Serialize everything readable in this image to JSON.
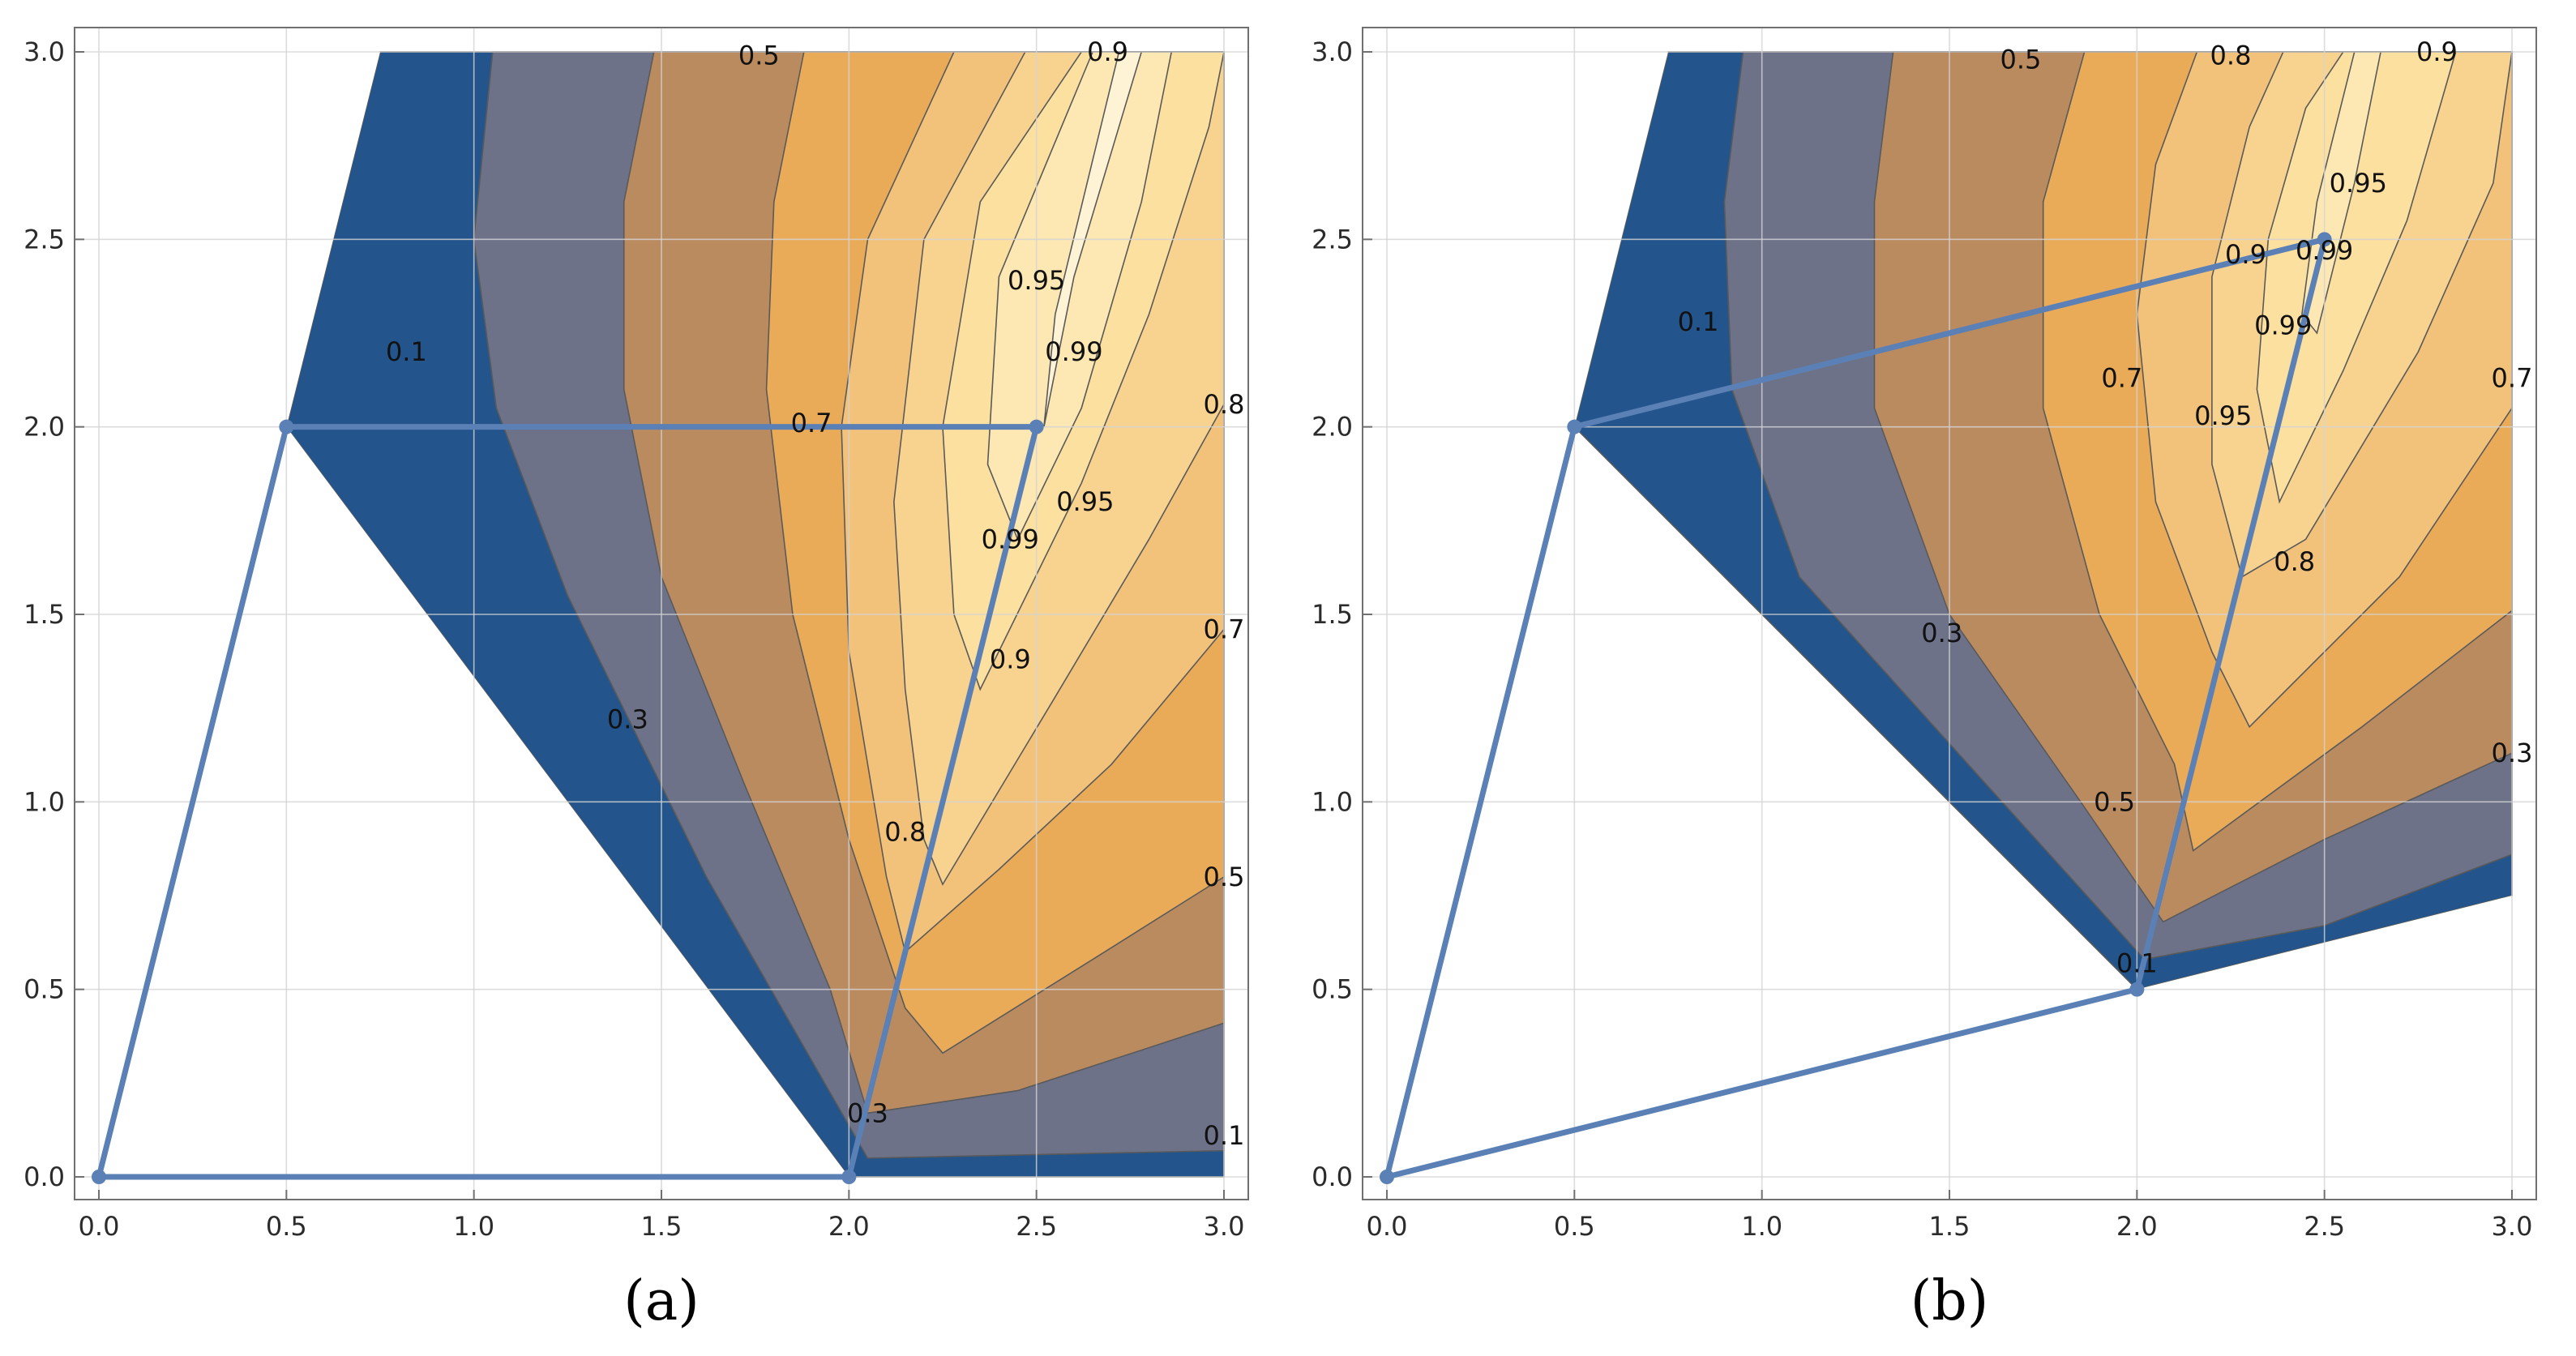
{
  "figure": {
    "panels": [
      "(a)",
      "(b)"
    ]
  },
  "colors": {
    "band_0_1": "#23558c",
    "band_1_3": "#6d7289",
    "band_3_5": "#bb8b60",
    "band_5_7": "#eaab59",
    "band_7_8": "#f2c27b",
    "band_8_9": "#f8d38f",
    "band_9_95": "#fce09f",
    "band_95_99": "#fde8b4",
    "band_99_100": "#fff3d6",
    "frame": "#707070",
    "grid": "#d4d4d4",
    "polygon": "#5b80b5"
  },
  "chart_data": [
    {
      "type": "contour",
      "panel": "(a)",
      "title": "",
      "xlabel": "",
      "ylabel": "",
      "xlim": [
        0,
        3
      ],
      "ylim": [
        0,
        3
      ],
      "xticks": [
        "0.0",
        "0.5",
        "1.0",
        "1.5",
        "2.0",
        "2.5",
        "3.0"
      ],
      "yticks": [
        "0.0",
        "0.5",
        "1.0",
        "1.5",
        "2.0",
        "2.5",
        "3.0"
      ],
      "grid": true,
      "polygon_vertices": [
        [
          0,
          0
        ],
        [
          0.5,
          2
        ],
        [
          2.5,
          2
        ],
        [
          2,
          0
        ]
      ],
      "polygon_edges": [
        [
          [
            0,
            0
          ],
          [
            0.5,
            2
          ]
        ],
        [
          [
            0.5,
            2
          ],
          [
            2.5,
            2
          ]
        ],
        [
          [
            0,
            0
          ],
          [
            2,
            0
          ]
        ],
        [
          [
            2,
            0
          ],
          [
            2.5,
            2
          ]
        ]
      ],
      "contour_levels": [
        "0.1",
        "0.3",
        "0.5",
        "0.7",
        "0.8",
        "0.9",
        "0.95",
        "0.99"
      ],
      "labels": [
        {
          "text": "0.1",
          "x": 0.82,
          "y": 2.2
        },
        {
          "text": "0.3",
          "x": 1.41,
          "y": 1.22
        },
        {
          "text": "0.5",
          "x": 1.76,
          "y": 2.99
        },
        {
          "text": "0.7",
          "x": 1.9,
          "y": 2.01
        },
        {
          "text": "0.8",
          "x": 2.15,
          "y": 0.92
        },
        {
          "text": "0.9",
          "x": 2.69,
          "y": 3.0
        },
        {
          "text": "0.95",
          "x": 2.5,
          "y": 2.39
        },
        {
          "text": "0.99",
          "x": 2.6,
          "y": 2.2
        },
        {
          "text": "0.95",
          "x": 2.63,
          "y": 1.8
        },
        {
          "text": "0.99",
          "x": 2.43,
          "y": 1.7
        },
        {
          "text": "0.9",
          "x": 2.43,
          "y": 1.38
        },
        {
          "text": "0.8",
          "x": 3.0,
          "y": 2.06
        },
        {
          "text": "0.7",
          "x": 3.0,
          "y": 1.46
        },
        {
          "text": "0.5",
          "x": 3.0,
          "y": 0.8
        },
        {
          "text": "0.3",
          "x": 2.05,
          "y": 0.17
        },
        {
          "text": "0.1",
          "x": 3.0,
          "y": 0.11
        }
      ]
    },
    {
      "type": "contour",
      "panel": "(b)",
      "title": "",
      "xlabel": "",
      "ylabel": "",
      "xlim": [
        0,
        3
      ],
      "ylim": [
        0,
        3
      ],
      "xticks": [
        "0.0",
        "0.5",
        "1.0",
        "1.5",
        "2.0",
        "2.5",
        "3.0"
      ],
      "yticks": [
        "0.0",
        "0.5",
        "1.0",
        "1.5",
        "2.0",
        "2.5",
        "3.0"
      ],
      "grid": true,
      "polygon_vertices": [
        [
          0,
          0
        ],
        [
          0.5,
          2
        ],
        [
          2.5,
          2.5
        ],
        [
          2,
          0.5
        ]
      ],
      "polygon_edges": [
        [
          [
            0,
            0
          ],
          [
            0.5,
            2
          ]
        ],
        [
          [
            0.5,
            2
          ],
          [
            2.5,
            2.5
          ]
        ],
        [
          [
            0,
            0
          ],
          [
            2,
            0.5
          ]
        ],
        [
          [
            2,
            0.5
          ],
          [
            2.5,
            2.5
          ]
        ]
      ],
      "contour_levels": [
        "0.1",
        "0.3",
        "0.5",
        "0.7",
        "0.8",
        "0.9",
        "0.95",
        "0.99"
      ],
      "labels": [
        {
          "text": "0.1",
          "x": 0.83,
          "y": 2.28
        },
        {
          "text": "0.3",
          "x": 1.48,
          "y": 1.45
        },
        {
          "text": "0.5",
          "x": 1.69,
          "y": 2.98
        },
        {
          "text": "0.8",
          "x": 2.25,
          "y": 2.99
        },
        {
          "text": "0.9",
          "x": 2.8,
          "y": 3.0
        },
        {
          "text": "0.95",
          "x": 2.59,
          "y": 2.65
        },
        {
          "text": "0.9",
          "x": 2.29,
          "y": 2.46
        },
        {
          "text": "0.99",
          "x": 2.5,
          "y": 2.47
        },
        {
          "text": "0.99",
          "x": 2.39,
          "y": 2.27
        },
        {
          "text": "0.7",
          "x": 1.96,
          "y": 2.13
        },
        {
          "text": "0.95",
          "x": 2.23,
          "y": 2.03
        },
        {
          "text": "0.7",
          "x": 3.0,
          "y": 2.13
        },
        {
          "text": "0.8",
          "x": 2.42,
          "y": 1.64
        },
        {
          "text": "0.3",
          "x": 3.0,
          "y": 1.13
        },
        {
          "text": "0.5",
          "x": 1.94,
          "y": 1.0
        },
        {
          "text": "0.1",
          "x": 2.0,
          "y": 0.57
        }
      ]
    }
  ]
}
